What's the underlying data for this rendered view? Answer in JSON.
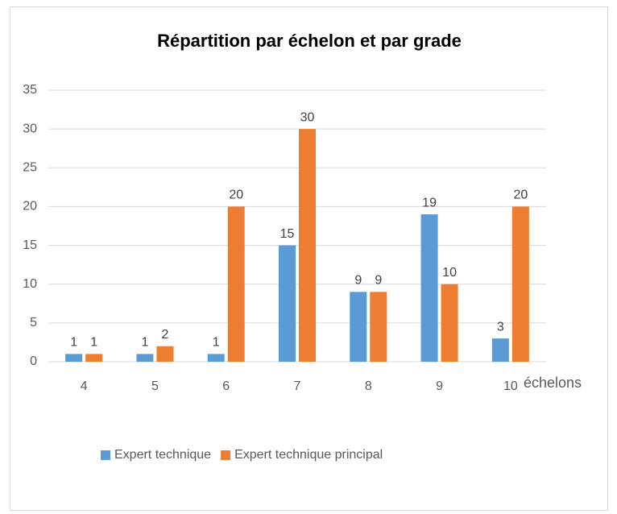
{
  "chart_data": {
    "type": "bar",
    "title": "Répartition par échelon et par grade",
    "x_label": "échelons",
    "categories": [
      "4",
      "5",
      "6",
      "7",
      "8",
      "9",
      "10"
    ],
    "series": [
      {
        "name": "Expert technique",
        "color": "#5b9bd5",
        "values": [
          1,
          1,
          1,
          15,
          9,
          19,
          3
        ]
      },
      {
        "name": "Expert technique principal",
        "color": "#ed7d31",
        "values": [
          1,
          2,
          20,
          30,
          9,
          10,
          20
        ]
      }
    ],
    "ylim": [
      0,
      35
    ],
    "yticks": [
      0,
      5,
      10,
      15,
      20,
      25,
      30,
      35
    ],
    "grid": true,
    "legend": "bottom"
  }
}
